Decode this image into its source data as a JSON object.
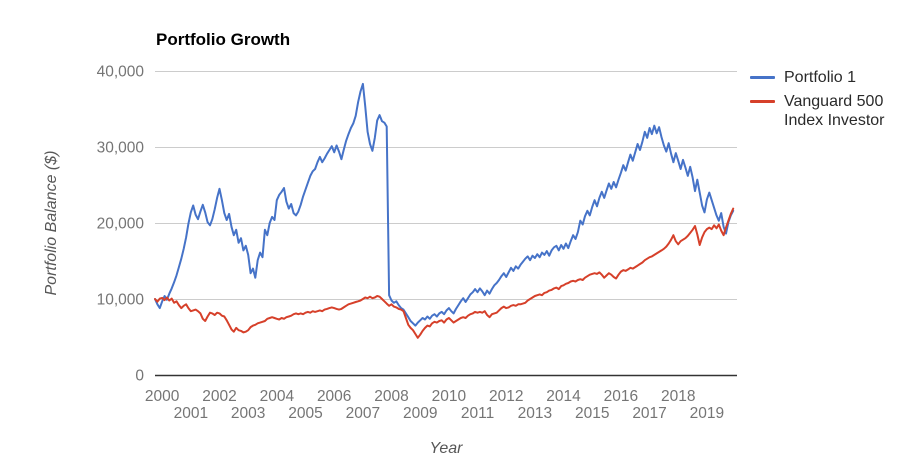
{
  "title": "Portfolio Growth",
  "y_axis": {
    "title": "Portfolio Balance ($)",
    "ticks": [
      "0",
      "10,000",
      "20,000",
      "30,000",
      "40,000"
    ],
    "tick_values": [
      0,
      10000,
      20000,
      30000,
      40000
    ]
  },
  "x_axis": {
    "title": "Year",
    "ticks": [
      "2000",
      "2001",
      "2002",
      "2003",
      "2004",
      "2005",
      "2006",
      "2007",
      "2008",
      "2009",
      "2010",
      "2011",
      "2012",
      "2013",
      "2014",
      "2015",
      "2016",
      "2017",
      "2018",
      "2019"
    ]
  },
  "legend": [
    {
      "label": "Portfolio 1",
      "color": "#4673c8"
    },
    {
      "label": "Vanguard 500 Index Investor",
      "color": "#d6402a"
    }
  ],
  "colors": {
    "gridline": "#cccccc",
    "baseline": "#333333",
    "tick_text": "#757575",
    "axis_title_text": "#575757",
    "legend_text": "#2a2a2a"
  },
  "chart_data": {
    "type": "line",
    "title": "Portfolio Growth",
    "xlabel": "Year",
    "ylabel": "Portfolio Balance ($)",
    "xlim": [
      2000,
      2020.3
    ],
    "ylim": [
      0,
      40000
    ],
    "grid": true,
    "legend_position": "right",
    "x_start": 2000.0,
    "x_step": 0.0833333,
    "series": [
      {
        "name": "Portfolio 1",
        "color": "#4673c8",
        "values": [
          10000,
          9300,
          8800,
          9700,
          10400,
          9900,
          10700,
          11400,
          12200,
          13100,
          14200,
          15300,
          16600,
          18100,
          19900,
          21400,
          22300,
          21100,
          20500,
          21500,
          22400,
          21400,
          20100,
          19700,
          20500,
          21800,
          23300,
          24500,
          23000,
          21300,
          20400,
          21200,
          19500,
          18400,
          19100,
          17400,
          18000,
          16400,
          17000,
          15800,
          13400,
          14000,
          12800,
          15100,
          16100,
          15500,
          19100,
          18400,
          20000,
          20800,
          20400,
          23000,
          23700,
          24100,
          24600,
          22800,
          21900,
          22500,
          21300,
          21000,
          21500,
          22400,
          23500,
          24400,
          25300,
          26200,
          26800,
          27100,
          28000,
          28700,
          28000,
          28500,
          29100,
          29600,
          30100,
          29300,
          30200,
          29400,
          28400,
          29600,
          30800,
          31700,
          32500,
          33100,
          34100,
          35900,
          37300,
          38300,
          35400,
          32000,
          30400,
          29500,
          31200,
          33500,
          34200,
          33400,
          33200,
          32700,
          10500,
          9800,
          9500,
          9700,
          9200,
          8800,
          8600,
          8100,
          7600,
          7100,
          6800,
          6500,
          6900,
          7200,
          7500,
          7300,
          7700,
          7400,
          7800,
          8000,
          7700,
          8100,
          8300,
          8000,
          8500,
          8800,
          8400,
          8100,
          8700,
          9200,
          9700,
          10100,
          9600,
          10100,
          10600,
          10900,
          11300,
          10900,
          11400,
          11000,
          10500,
          11100,
          10700,
          11300,
          11800,
          12100,
          12500,
          13000,
          13400,
          12900,
          13500,
          14100,
          13700,
          14300,
          14000,
          14500,
          14900,
          15300,
          15600,
          15100,
          15700,
          15400,
          15900,
          15500,
          16100,
          15800,
          16300,
          15700,
          16400,
          16800,
          17000,
          16400,
          17100,
          16600,
          17300,
          16700,
          17600,
          18400,
          17900,
          18800,
          20300,
          19800,
          20900,
          21600,
          21000,
          22100,
          23000,
          22200,
          23300,
          24100,
          23300,
          24300,
          25200,
          24500,
          25400,
          24700,
          25700,
          26600,
          27600,
          26900,
          28000,
          29000,
          28200,
          29300,
          30400,
          29600,
          30700,
          32000,
          31200,
          32500,
          31700,
          32800,
          31800,
          32600,
          31300,
          30200,
          29400,
          30500,
          29100,
          28000,
          29200,
          28200,
          27100,
          28300,
          27300,
          26200,
          27400,
          26000,
          24200,
          25700,
          24000,
          22300,
          21400,
          23100,
          24000,
          23000,
          22000,
          21000,
          20300,
          21300,
          19500,
          18600,
          20100,
          21000,
          21600
        ]
      },
      {
        "name": "Vanguard 500 Index Investor",
        "color": "#d6402a",
        "values": [
          10000,
          9650,
          10050,
          10150,
          9850,
          10200,
          9800,
          10050,
          9500,
          9700,
          9200,
          8800,
          9100,
          9300,
          8800,
          8400,
          8500,
          8600,
          8400,
          8100,
          7400,
          7100,
          7700,
          8200,
          8100,
          7900,
          8200,
          8100,
          7800,
          7700,
          7200,
          6600,
          6000,
          5700,
          6200,
          5900,
          5800,
          5600,
          5700,
          5900,
          6300,
          6500,
          6600,
          6800,
          6900,
          7000,
          7100,
          7400,
          7500,
          7600,
          7500,
          7400,
          7300,
          7500,
          7400,
          7600,
          7700,
          7800,
          8000,
          8100,
          8000,
          8100,
          8000,
          8200,
          8300,
          8200,
          8400,
          8300,
          8400,
          8500,
          8400,
          8600,
          8700,
          8800,
          8900,
          8800,
          8700,
          8600,
          8700,
          8900,
          9100,
          9300,
          9400,
          9500,
          9600,
          9700,
          9800,
          10000,
          10200,
          10100,
          10300,
          10100,
          10200,
          10400,
          10300,
          10000,
          9700,
          9400,
          9100,
          9300,
          9000,
          8900,
          8700,
          8600,
          8400,
          7500,
          6600,
          6200,
          5900,
          5400,
          4900,
          5300,
          5800,
          6200,
          6500,
          6400,
          6800,
          7000,
          6900,
          7100,
          7200,
          6900,
          7300,
          7500,
          7200,
          6900,
          7100,
          7300,
          7500,
          7600,
          7500,
          7800,
          8000,
          8100,
          8300,
          8200,
          8300,
          8200,
          8400,
          7900,
          7600,
          8000,
          8100,
          8200,
          8500,
          8800,
          9000,
          8800,
          8900,
          9100,
          9200,
          9100,
          9300,
          9300,
          9400,
          9500,
          9800,
          10000,
          10200,
          10400,
          10500,
          10600,
          10500,
          10800,
          10900,
          11100,
          11200,
          11400,
          11500,
          11300,
          11700,
          11800,
          12000,
          12100,
          12300,
          12400,
          12300,
          12500,
          12600,
          12500,
          12800,
          13000,
          13200,
          13300,
          13400,
          13300,
          13500,
          13200,
          12800,
          13100,
          13400,
          13200,
          12900,
          12700,
          13200,
          13600,
          13800,
          13700,
          13900,
          14100,
          14000,
          14200,
          14400,
          14600,
          14800,
          15100,
          15300,
          15500,
          15600,
          15800,
          16000,
          16200,
          16400,
          16600,
          16900,
          17300,
          17800,
          18400,
          17600,
          17200,
          17600,
          17800,
          18000,
          18300,
          18700,
          19100,
          19600,
          18500,
          17100,
          18100,
          18800,
          19200,
          19400,
          19200,
          19700,
          19300,
          19800,
          19000,
          18400,
          19400,
          20300,
          21200,
          21900
        ]
      }
    ]
  }
}
